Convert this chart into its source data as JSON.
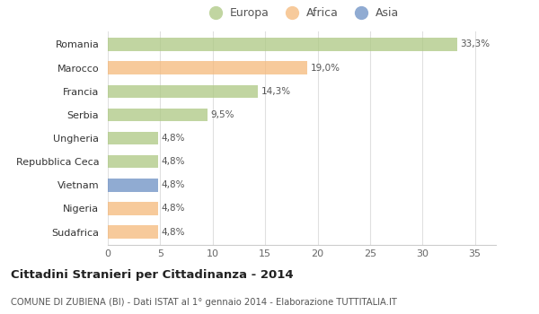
{
  "categories": [
    "Romania",
    "Marocco",
    "Francia",
    "Serbia",
    "Ungheria",
    "Repubblica Ceca",
    "Vietnam",
    "Nigeria",
    "Sudafrica"
  ],
  "values": [
    33.3,
    19.0,
    14.3,
    9.5,
    4.8,
    4.8,
    4.8,
    4.8,
    4.8
  ],
  "colors": [
    "#adc882",
    "#f5b97a",
    "#adc882",
    "#adc882",
    "#adc882",
    "#adc882",
    "#6b8fc4",
    "#f5b97a",
    "#f5b97a"
  ],
  "labels": [
    "33,3%",
    "19,0%",
    "14,3%",
    "9,5%",
    "4,8%",
    "4,8%",
    "4,8%",
    "4,8%",
    "4,8%"
  ],
  "legend": [
    {
      "label": "Europa",
      "color": "#adc882"
    },
    {
      "label": "Africa",
      "color": "#f5b97a"
    },
    {
      "label": "Asia",
      "color": "#6b8fc4"
    }
  ],
  "title": "Cittadini Stranieri per Cittadinanza - 2014",
  "subtitle": "COMUNE DI ZUBIENA (BI) - Dati ISTAT al 1° gennaio 2014 - Elaborazione TUTTITALIA.IT",
  "xlim": [
    0,
    37
  ],
  "xticks": [
    0,
    5,
    10,
    15,
    20,
    25,
    30,
    35
  ],
  "background_color": "#ffffff",
  "grid_color": "#e0e0e0",
  "bar_alpha": 0.75,
  "bar_height": 0.55
}
